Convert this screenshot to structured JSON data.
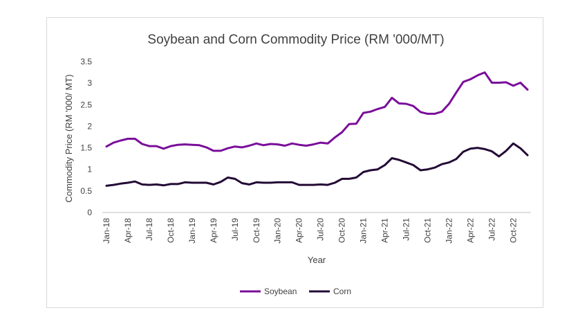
{
  "chart_data": {
    "type": "line",
    "title": "Soybean and Corn Commodity Price (RM '000/MT)",
    "xlabel": "Year",
    "ylabel": "Commodity Price (RM '000/ MT)",
    "ylim": [
      0,
      3.5
    ],
    "y_ticks": [
      "0",
      "0.5",
      "1",
      "1.5",
      "2",
      "2.5",
      "3",
      "3.5"
    ],
    "grid": false,
    "legend_position": "bottom",
    "x": [
      "Jan-18",
      "Feb-18",
      "Mar-18",
      "Apr-18",
      "May-18",
      "Jun-18",
      "Jul-18",
      "Aug-18",
      "Sep-18",
      "Oct-18",
      "Nov-18",
      "Dec-18",
      "Jan-19",
      "Feb-19",
      "Mar-19",
      "Apr-19",
      "May-19",
      "Jun-19",
      "Jul-19",
      "Aug-19",
      "Sep-19",
      "Oct-19",
      "Nov-19",
      "Dec-19",
      "Jan-20",
      "Feb-20",
      "Mar-20",
      "Apr-20",
      "May-20",
      "Jun-20",
      "Jul-20",
      "Aug-20",
      "Sep-20",
      "Oct-20",
      "Nov-20",
      "Dec-20",
      "Jan-21",
      "Feb-21",
      "Mar-21",
      "Apr-21",
      "May-21",
      "Jun-21",
      "Jul-21",
      "Aug-21",
      "Sep-21",
      "Oct-21",
      "Nov-21",
      "Dec-21",
      "Jan-22",
      "Feb-22",
      "Mar-22",
      "Apr-22",
      "May-22",
      "Jun-22",
      "Jul-22",
      "Aug-22",
      "Sep-22",
      "Oct-22",
      "Nov-22",
      "Dec-22"
    ],
    "x_tick_labels": [
      "Jan-18",
      "Apr-18",
      "Jul-18",
      "Oct-18",
      "Jan-19",
      "Apr-19",
      "Jul-19",
      "Oct-19",
      "Jan-20",
      "Apr-20",
      "Jul-20",
      "Oct-20",
      "Jan-21",
      "Apr-21",
      "Jul-21",
      "Oct-21",
      "Jan-22",
      "Apr-22",
      "Jul-22",
      "Oct-22"
    ],
    "series": [
      {
        "name": "Soybean",
        "color": "#7a0e9a",
        "values": [
          1.53,
          1.62,
          1.67,
          1.71,
          1.71,
          1.59,
          1.54,
          1.54,
          1.48,
          1.54,
          1.57,
          1.58,
          1.57,
          1.56,
          1.51,
          1.43,
          1.43,
          1.49,
          1.53,
          1.51,
          1.55,
          1.6,
          1.56,
          1.59,
          1.58,
          1.55,
          1.6,
          1.57,
          1.55,
          1.58,
          1.62,
          1.6,
          1.74,
          1.86,
          2.05,
          2.06,
          2.31,
          2.34,
          2.4,
          2.45,
          2.66,
          2.53,
          2.52,
          2.47,
          2.33,
          2.29,
          2.29,
          2.34,
          2.52,
          2.78,
          3.03,
          3.09,
          3.18,
          3.25,
          3.01,
          3.01,
          3.02,
          2.94,
          3.01,
          2.85
        ]
      },
      {
        "name": "Corn",
        "color": "#230a35",
        "values": [
          0.62,
          0.64,
          0.67,
          0.69,
          0.72,
          0.65,
          0.64,
          0.65,
          0.63,
          0.66,
          0.66,
          0.7,
          0.69,
          0.69,
          0.69,
          0.65,
          0.71,
          0.81,
          0.78,
          0.68,
          0.65,
          0.7,
          0.69,
          0.69,
          0.7,
          0.7,
          0.7,
          0.64,
          0.64,
          0.64,
          0.65,
          0.64,
          0.69,
          0.78,
          0.78,
          0.81,
          0.94,
          0.98,
          1.0,
          1.1,
          1.26,
          1.22,
          1.16,
          1.1,
          0.98,
          1.0,
          1.04,
          1.12,
          1.16,
          1.24,
          1.41,
          1.48,
          1.5,
          1.47,
          1.42,
          1.3,
          1.43,
          1.6,
          1.49,
          1.33
        ]
      }
    ]
  }
}
